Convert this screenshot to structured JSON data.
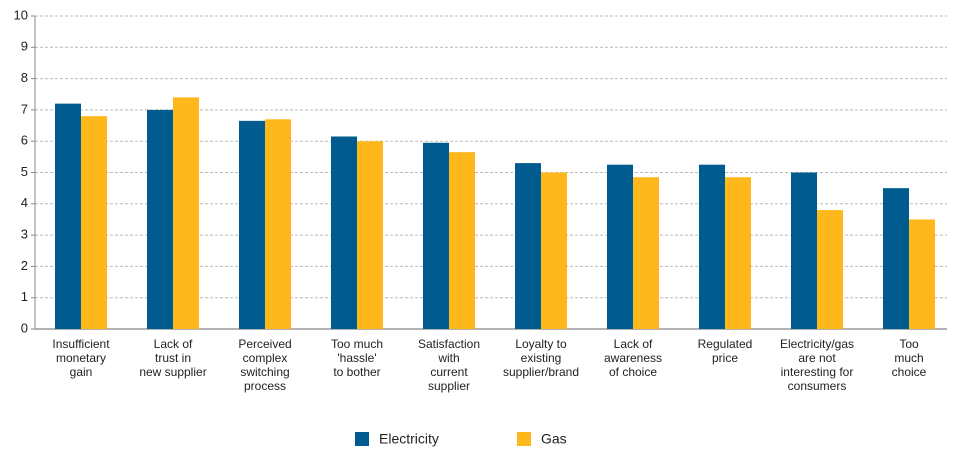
{
  "chart_data": {
    "type": "bar",
    "categories": [
      [
        "Insufficient",
        "monetary",
        "gain"
      ],
      [
        "Lack of",
        "trust in",
        "new supplier"
      ],
      [
        "Perceived",
        "complex",
        "switching",
        "process"
      ],
      [
        "Too much",
        "'hassle'",
        "to bother"
      ],
      [
        "Satisfaction",
        "with",
        "current",
        "supplier"
      ],
      [
        "Loyalty to",
        "existing",
        "supplier/brand"
      ],
      [
        "Lack of",
        "awareness",
        "of choice"
      ],
      [
        "Regulated",
        "price"
      ],
      [
        "Electricity/gas",
        "are not",
        "interesting for",
        "consumers"
      ],
      [
        "Too",
        "much",
        "choice"
      ]
    ],
    "series": [
      {
        "name": "Electricity",
        "color": "#005b8f",
        "values": [
          7.2,
          7.0,
          6.65,
          6.15,
          5.95,
          5.3,
          5.25,
          5.25,
          5.0,
          4.5
        ]
      },
      {
        "name": "Gas",
        "color": "#ffb81c",
        "values": [
          6.8,
          7.4,
          6.7,
          6.0,
          5.65,
          5.0,
          4.85,
          4.85,
          3.8,
          3.5
        ]
      }
    ],
    "ylim": [
      0,
      10
    ],
    "yticks": [
      0,
      1,
      2,
      3,
      4,
      5,
      6,
      7,
      8,
      9,
      10
    ],
    "grid": true,
    "legend": "bottom"
  }
}
